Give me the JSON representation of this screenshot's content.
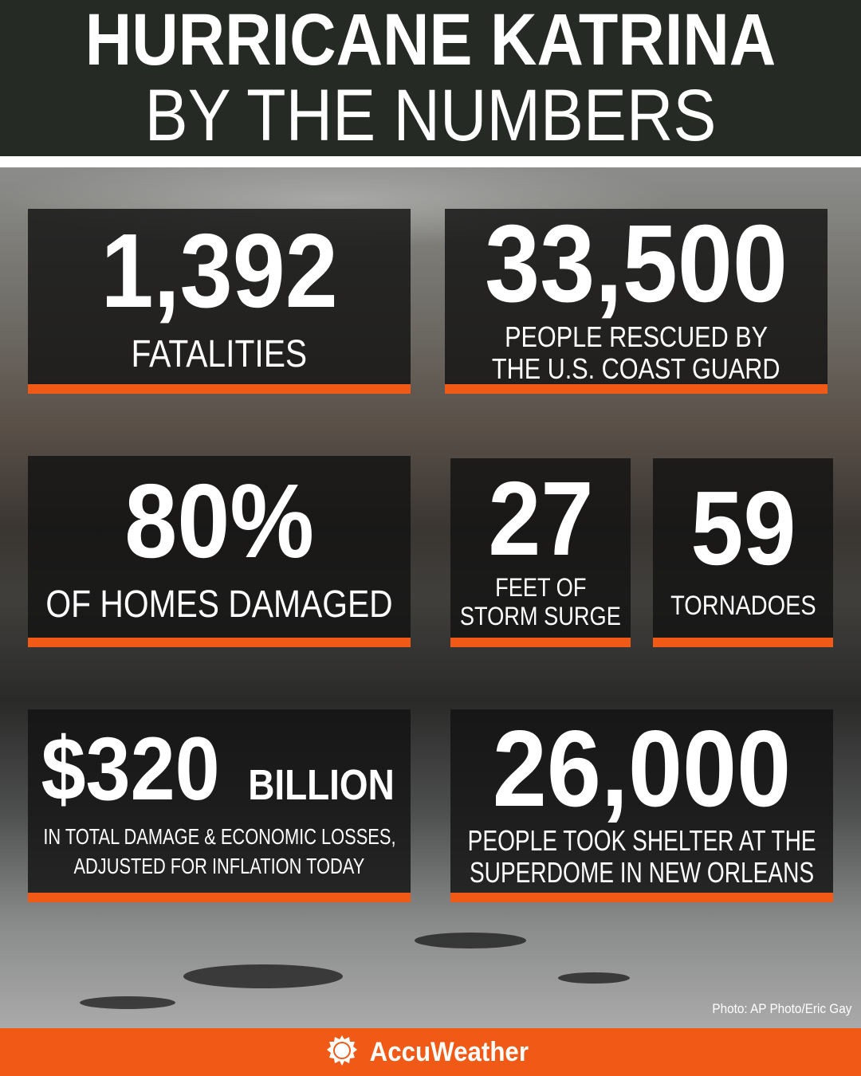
{
  "header": {
    "title_line1": "HURRICANE KATRINA",
    "title_line2": "BY THE NUMBERS"
  },
  "stats": [
    {
      "value": "1,392",
      "label": "FATALITIES"
    },
    {
      "value": "33,500",
      "label_line1": "PEOPLE RESCUED BY",
      "label_line2": "THE U.S. COAST GUARD"
    },
    {
      "value": "80%",
      "label": "OF HOMES DAMAGED"
    },
    {
      "value": "27",
      "label_line1": "FEET OF",
      "label_line2": "STORM SURGE"
    },
    {
      "value": "59",
      "label": "TORNADOES"
    },
    {
      "value": "$320",
      "unit": "BILLION",
      "label_line1": "IN TOTAL DAMAGE & ECONOMIC LOSSES,",
      "label_line2": "ADJUSTED FOR INFLATION TODAY"
    },
    {
      "value": "26,000",
      "label_line1": "PEOPLE TOOK SHELTER AT THE",
      "label_line2": "SUPERDOME IN NEW ORLEANS"
    }
  ],
  "photo_credit": "Photo: AP Photo/Eric Gay",
  "footer": {
    "brand": "AccuWeather",
    "logo_icon": "sun-icon"
  },
  "colors": {
    "accent": "#f15a16",
    "header_bg": "#262a25"
  }
}
